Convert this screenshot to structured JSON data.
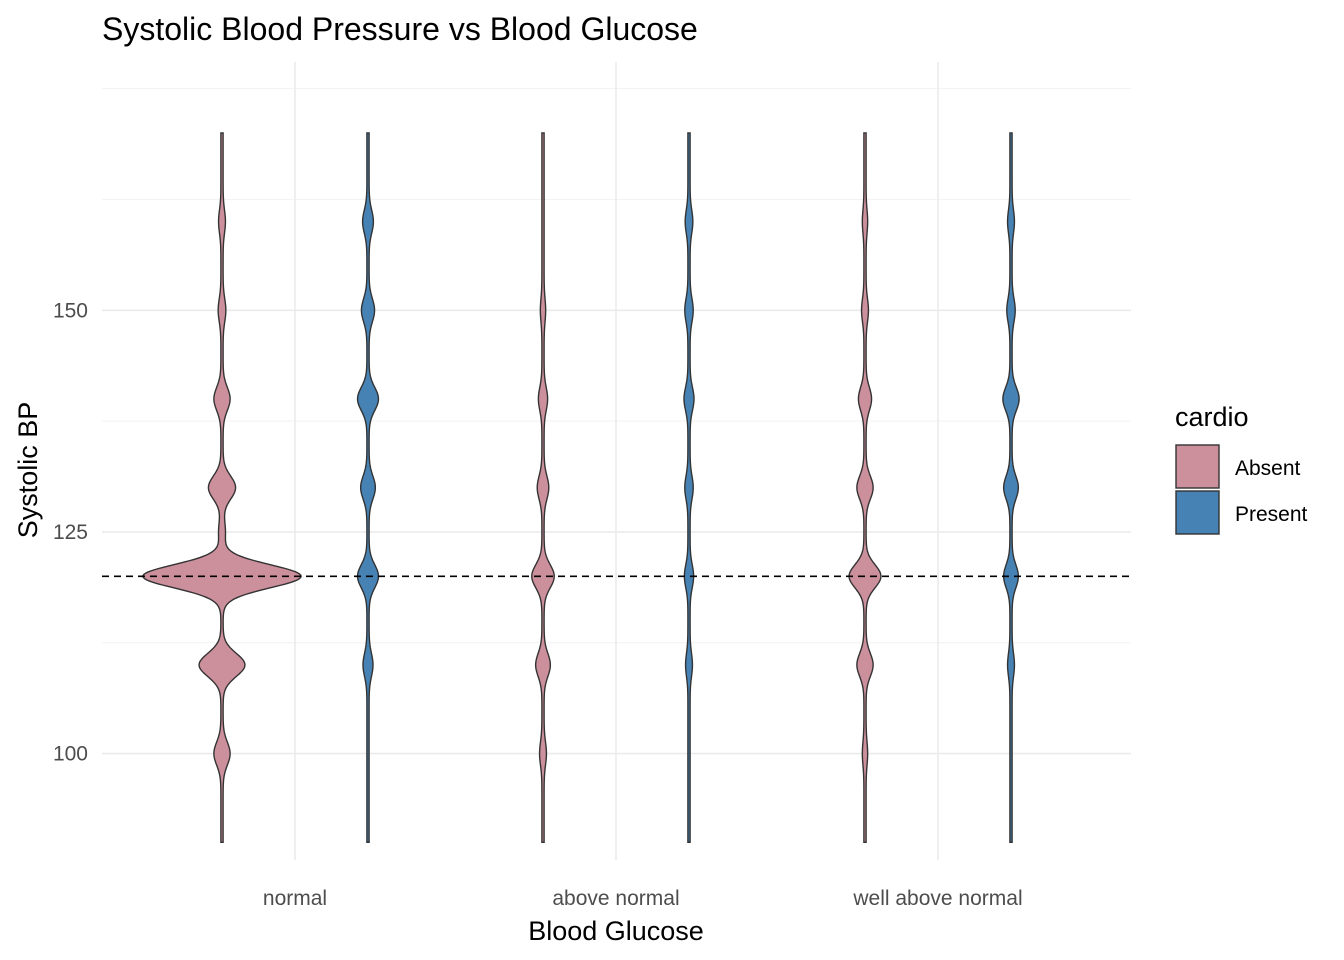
{
  "chart_data": {
    "type": "violin",
    "title": "Systolic Blood Pressure vs Blood Glucose",
    "xlabel": "Blood Glucose",
    "ylabel": "Systolic BP",
    "categories": [
      "normal",
      "above normal",
      "well above normal"
    ],
    "ylim": [
      88,
      178
    ],
    "yticks": [
      100,
      125,
      150
    ],
    "reference_line": {
      "y": 120,
      "style": "dashed"
    },
    "grid": true,
    "legend": {
      "title": "cardio",
      "placement": "right",
      "entries": [
        {
          "name": "Absent",
          "color": "#CC8F9C"
        },
        {
          "name": "Present",
          "color": "#4682B4"
        }
      ]
    },
    "y_range": [
      90,
      170
    ],
    "violins": [
      {
        "category": "normal",
        "group": "Absent",
        "peaks": [
          [
            100,
            0.09
          ],
          [
            110,
            0.28
          ],
          [
            120,
            1.0
          ],
          [
            125,
            0.03
          ],
          [
            130,
            0.16
          ],
          [
            140,
            0.09
          ],
          [
            150,
            0.035
          ],
          [
            160,
            0.03
          ]
        ]
      },
      {
        "category": "normal",
        "group": "Present",
        "peaks": [
          [
            110,
            0.05
          ],
          [
            120,
            0.12
          ],
          [
            130,
            0.08
          ],
          [
            140,
            0.12
          ],
          [
            150,
            0.07
          ],
          [
            160,
            0.055
          ]
        ]
      },
      {
        "category": "above normal",
        "group": "Absent",
        "peaks": [
          [
            100,
            0.03
          ],
          [
            110,
            0.08
          ],
          [
            120,
            0.13
          ],
          [
            130,
            0.06
          ],
          [
            140,
            0.045
          ],
          [
            150,
            0.02
          ]
        ]
      },
      {
        "category": "above normal",
        "group": "Present",
        "peaks": [
          [
            110,
            0.03
          ],
          [
            120,
            0.045
          ],
          [
            130,
            0.04
          ],
          [
            140,
            0.05
          ],
          [
            150,
            0.04
          ],
          [
            160,
            0.035
          ]
        ]
      },
      {
        "category": "well above normal",
        "group": "Absent",
        "peaks": [
          [
            100,
            0.02
          ],
          [
            110,
            0.09
          ],
          [
            120,
            0.19
          ],
          [
            130,
            0.09
          ],
          [
            140,
            0.07
          ],
          [
            150,
            0.03
          ],
          [
            160,
            0.02
          ]
        ]
      },
      {
        "category": "well above normal",
        "group": "Present",
        "peaks": [
          [
            110,
            0.03
          ],
          [
            120,
            0.08
          ],
          [
            130,
            0.08
          ],
          [
            140,
            0.09
          ],
          [
            150,
            0.04
          ],
          [
            160,
            0.03
          ]
        ]
      }
    ]
  }
}
